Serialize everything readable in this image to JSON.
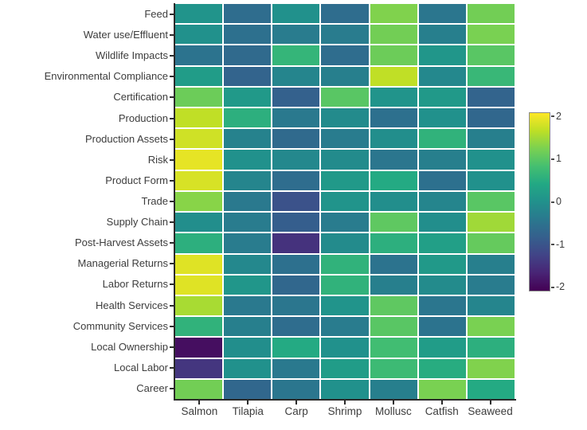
{
  "chart_data": {
    "type": "heatmap",
    "title": "",
    "xlabel": "",
    "ylabel": "",
    "grid": false,
    "rows": [
      "Feed",
      "Water use/Effluent",
      "Wildlife Impacts",
      "Environmental Compliance",
      "Certification",
      "Production",
      "Production Assets",
      "Risk",
      "Product Form",
      "Trade",
      "Supply Chain",
      "Post-Harvest Assets",
      "Managerial Returns",
      "Labor Returns",
      "Health Services",
      "Community Services",
      "Local Ownership",
      "Local Labor",
      "Career"
    ],
    "columns": [
      "Salmon",
      "Tilapia",
      "Carp",
      "Shrimp",
      "Mollusc",
      "Catfish",
      "Seaweed"
    ],
    "values": [
      [
        0.05,
        -0.6,
        0.0,
        -0.6,
        1.3,
        -0.45,
        1.2
      ],
      [
        0.0,
        -0.55,
        -0.35,
        -0.35,
        1.2,
        -0.3,
        1.25
      ],
      [
        -0.5,
        -0.65,
        0.65,
        -0.6,
        1.15,
        0.1,
        1.0
      ],
      [
        0.2,
        -0.75,
        -0.2,
        -0.3,
        1.7,
        -0.15,
        0.7
      ],
      [
        1.15,
        0.15,
        -0.8,
        1.0,
        0.05,
        0.15,
        -0.75
      ],
      [
        1.7,
        0.55,
        -0.4,
        -0.1,
        -0.55,
        0.0,
        -0.7
      ],
      [
        1.8,
        -0.25,
        -0.65,
        -0.35,
        -0.05,
        0.6,
        -0.3
      ],
      [
        1.95,
        0.0,
        -0.15,
        -0.1,
        -0.45,
        -0.3,
        0.0
      ],
      [
        1.85,
        -0.2,
        -0.6,
        0.15,
        0.45,
        -0.55,
        0.0
      ],
      [
        1.35,
        -0.4,
        -1.05,
        0.05,
        -0.05,
        -0.2,
        1.0
      ],
      [
        -0.05,
        -0.35,
        -0.85,
        -0.35,
        1.05,
        -0.05,
        1.5
      ],
      [
        0.55,
        -0.35,
        -1.5,
        -0.1,
        0.55,
        0.25,
        1.1
      ],
      [
        1.9,
        -0.15,
        -0.55,
        0.6,
        -0.5,
        0.15,
        -0.3
      ],
      [
        1.9,
        0.1,
        -0.7,
        0.6,
        -0.3,
        -0.1,
        -0.35
      ],
      [
        1.55,
        -0.4,
        -0.45,
        0.05,
        1.05,
        -0.45,
        -0.2
      ],
      [
        0.6,
        -0.3,
        -0.6,
        -0.35,
        1.0,
        -0.5,
        1.25
      ],
      [
        -1.95,
        -0.05,
        0.45,
        0.0,
        0.8,
        0.2,
        0.55
      ],
      [
        -1.45,
        0.0,
        -0.4,
        0.2,
        0.75,
        0.5,
        1.3
      ],
      [
        1.2,
        -0.7,
        -0.45,
        0.0,
        -0.3,
        1.25,
        0.45
      ]
    ],
    "zmin": -2.1,
    "zmax": 2.1,
    "colorbar": {
      "position": "right",
      "ticks": [
        2,
        1,
        0,
        -1,
        -2
      ],
      "tick_labels": [
        "2",
        "1",
        "0",
        "-1",
        "-2"
      ]
    },
    "colorscale": {
      "name": "viridis",
      "stops": [
        "#440154",
        "#482475",
        "#414487",
        "#355f8d",
        "#2a788e",
        "#21918c",
        "#22a884",
        "#44bf70",
        "#7ad151",
        "#bddf26",
        "#fde725"
      ]
    }
  },
  "style": {
    "axis_line_color": "#2a2a2a",
    "text_color": "#3d3d3d",
    "background_color": "#ffffff",
    "cell_gap_color": "#ffffff"
  }
}
